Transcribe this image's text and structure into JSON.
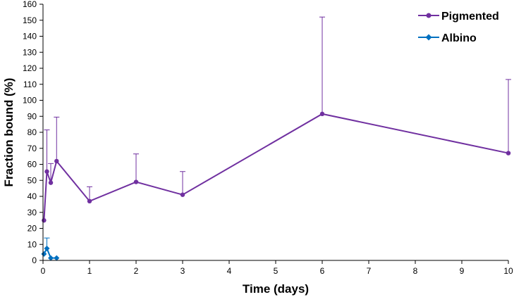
{
  "chart_data": {
    "type": "line",
    "xlabel": "Time (days)",
    "ylabel": "Fraction bound (%)",
    "xlim": [
      0,
      10
    ],
    "ylim": [
      0,
      160
    ],
    "xticks": [
      0,
      1,
      2,
      3,
      4,
      5,
      6,
      7,
      8,
      9,
      10
    ],
    "yticks": [
      0,
      10,
      20,
      30,
      40,
      50,
      60,
      70,
      80,
      90,
      100,
      110,
      120,
      130,
      140,
      150,
      160
    ],
    "grid": false,
    "legend_position": "top-right",
    "series": [
      {
        "name": "Pigmented",
        "color": "#7030A0",
        "marker": "circle",
        "x": [
          0.021,
          0.083,
          0.167,
          0.292,
          1,
          2,
          3,
          6,
          10
        ],
        "y": [
          25,
          55.5,
          48.5,
          62,
          37,
          49,
          41,
          91.5,
          67
        ],
        "error_upper": [
          null,
          81.5,
          60.5,
          89.5,
          46,
          66.5,
          55.5,
          152,
          113
        ]
      },
      {
        "name": "Albino",
        "color": "#0070C0",
        "marker": "diamond",
        "x": [
          0.021,
          0.083,
          0.167,
          0.292
        ],
        "y": [
          4,
          7.5,
          1.5,
          1.5
        ],
        "error_upper": [
          null,
          14,
          null,
          null
        ]
      }
    ]
  }
}
